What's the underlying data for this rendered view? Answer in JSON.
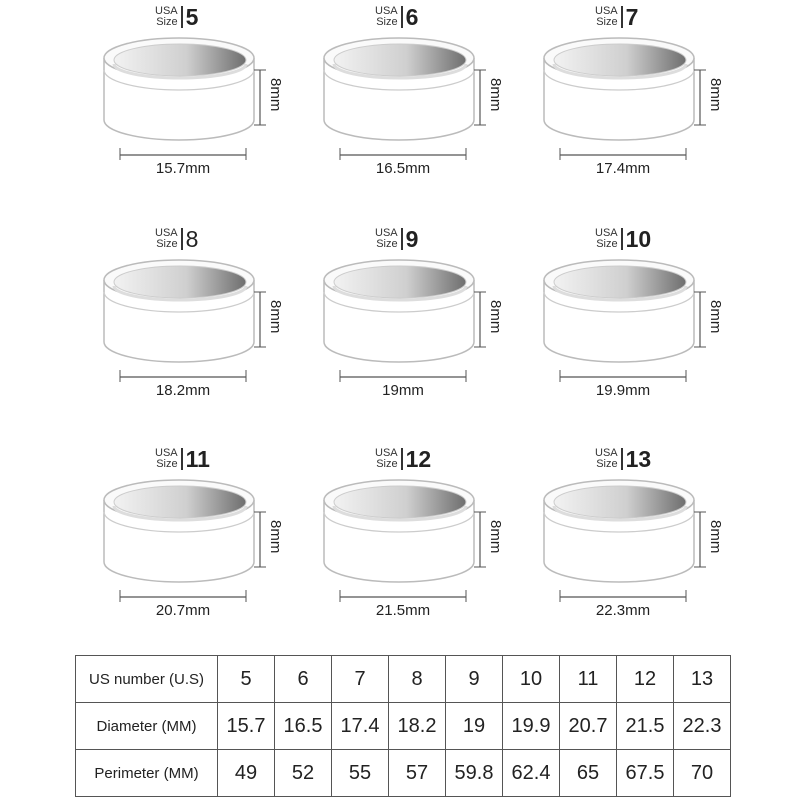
{
  "colors": {
    "ring_inner": "#7a7a7a",
    "ring_outline": "#bbbbbb",
    "text": "#222222"
  },
  "size_prefix": {
    "line1": "USA",
    "line2": "Size"
  },
  "ring_height": "8mm",
  "rings": [
    {
      "size": "5",
      "diameter": "15.7mm"
    },
    {
      "size": "6",
      "diameter": "16.5mm"
    },
    {
      "size": "7",
      "diameter": "17.4mm"
    },
    {
      "size": "8",
      "diameter": "18.2mm"
    },
    {
      "size": "9",
      "diameter": "19mm"
    },
    {
      "size": "10",
      "diameter": "19.9mm"
    },
    {
      "size": "11",
      "diameter": "20.7mm"
    },
    {
      "size": "12",
      "diameter": "21.5mm"
    },
    {
      "size": "13",
      "diameter": "22.3mm"
    }
  ],
  "table": {
    "rows": [
      {
        "header": "US number (U.S)",
        "values": [
          "5",
          "6",
          "7",
          "8",
          "9",
          "10",
          "11",
          "12",
          "13"
        ]
      },
      {
        "header": "Diameter (MM)",
        "values": [
          "15.7",
          "16.5",
          "17.4",
          "18.2",
          "19",
          "19.9",
          "20.7",
          "21.5",
          "22.3"
        ]
      },
      {
        "header": "Perimeter (MM)",
        "values": [
          "49",
          "52",
          "55",
          "57",
          "59.8",
          "62.4",
          "65",
          "67.5",
          "70"
        ]
      }
    ]
  }
}
